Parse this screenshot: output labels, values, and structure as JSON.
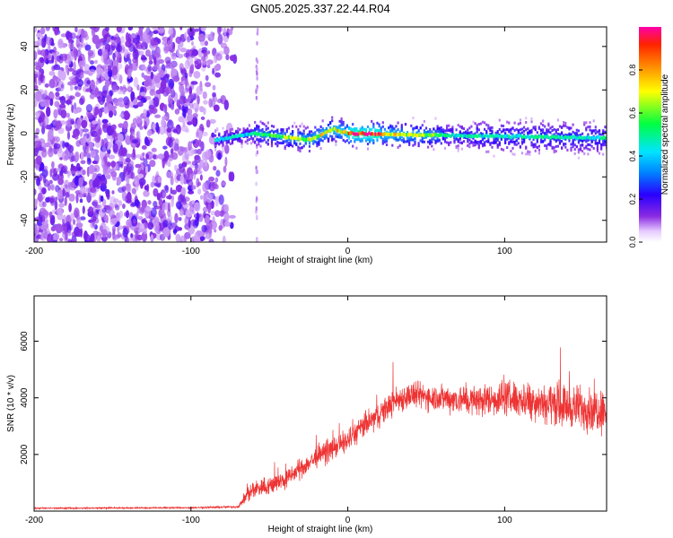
{
  "title": "GN05.2025.337.22.44.R04",
  "chart_data": [
    {
      "type": "heatmap",
      "xlabel": "Height of straight line (km)",
      "ylabel": "Frequency (Hz)",
      "xlim": [
        -200,
        165
      ],
      "ylim": [
        -50,
        49
      ],
      "xticks": [
        -200,
        -100,
        0,
        100
      ],
      "yticks": [
        -40,
        -20,
        0,
        20,
        40
      ],
      "colorbar": {
        "label": "Normalized spectral amplitude",
        "range": [
          0,
          1
        ],
        "ticks": [
          "0.0",
          "0.2",
          "0.4",
          "0.6",
          "0.8"
        ],
        "colormap": "rainbow (violet→blue→cyan→green→yellow→orange→red→magenta)"
      },
      "features": {
        "noise_region_x": [
          -200,
          -72
        ],
        "noise_extra_streak_x": -58,
        "signal_start_x": -85,
        "signal_band_freq_hz": [
          [
            -85,
            -3
          ],
          [
            -60,
            0
          ],
          [
            -25,
            -3
          ],
          [
            -10,
            2
          ],
          [
            0,
            0
          ],
          [
            60,
            -1
          ],
          [
            160,
            -2
          ]
        ],
        "peak_x": [
          0,
          20
        ],
        "peak_amplitude": 1.0
      }
    },
    {
      "type": "line",
      "xlabel": "Height of straight line (km)",
      "ylabel": "SNR (10 * v/v)",
      "xlim": [
        -200,
        165
      ],
      "ylim": [
        0,
        7600
      ],
      "xticks": [
        -200,
        -100,
        0,
        100
      ],
      "yticks": [
        2000,
        4000,
        6000
      ],
      "series": [
        {
          "name": "SNR",
          "color": "#ee3333",
          "envelope": {
            "x": [
              -200,
              -100,
              -70,
              -65,
              -60,
              -50,
              -40,
              -30,
              -20,
              -10,
              0,
              10,
              20,
              30,
              40,
              60,
              80,
              100,
              120,
              140,
              160,
              165
            ],
            "mean": [
              100,
              120,
              150,
              500,
              800,
              900,
              1100,
              1500,
              1900,
              2200,
              2500,
              3000,
              3400,
              3900,
              4100,
              4000,
              3900,
              4000,
              3900,
              3700,
              3600,
              3600
            ],
            "spread": [
              40,
              40,
              60,
              350,
              500,
              500,
              500,
              500,
              550,
              550,
              600,
              650,
              650,
              700,
              700,
              700,
              800,
              900,
              1000,
              1100,
              1200,
              1200
            ]
          }
        }
      ]
    }
  ]
}
